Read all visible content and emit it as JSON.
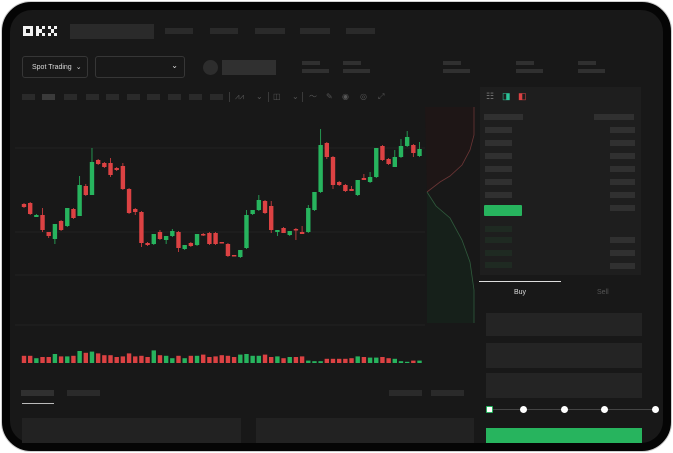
{
  "header": {
    "logo": "OKX"
  },
  "market": {
    "mode_label": "Spot Trading",
    "mode_icon": "chevron-down-icon",
    "pair_icon": "chevron-down-icon"
  },
  "toolbar": {
    "icons": [
      "indicator-icon",
      "chevron-down-icon",
      "candle-type-icon",
      "chevron-down-icon",
      "line-tool-icon",
      "pencil-icon",
      "camera-icon",
      "circle-icon",
      "expand-icon"
    ]
  },
  "orderbook": {
    "view_icons": [
      "book-both-icon",
      "book-bids-icon",
      "book-asks-icon"
    ]
  },
  "trade": {
    "tabs": [
      "Buy",
      "Sell"
    ],
    "active_tab": "Buy",
    "slider_percent": 0,
    "slider_stops": [
      0,
      25,
      50,
      75,
      100
    ]
  },
  "colors": {
    "up": "#27b45e",
    "down": "#dc4243",
    "background": "#181818",
    "panel": "#1e1e1e"
  },
  "chart_data": {
    "type": "candlestick",
    "ohlc": [
      [
        96,
        97,
        92,
        93
      ],
      [
        97,
        98,
        85,
        86
      ],
      [
        83,
        86,
        83,
        85
      ],
      [
        85,
        92,
        68,
        70
      ],
      [
        68,
        68,
        62,
        64
      ],
      [
        61,
        76,
        56,
        76
      ],
      [
        79,
        80,
        69,
        70
      ],
      [
        74,
        92,
        73,
        92
      ],
      [
        91,
        92,
        81,
        82
      ],
      [
        84,
        124,
        84,
        115
      ],
      [
        114,
        116,
        104,
        105
      ],
      [
        105,
        152,
        105,
        138
      ],
      [
        140,
        141,
        135,
        136
      ],
      [
        137,
        138,
        132,
        133
      ],
      [
        137,
        142,
        123,
        125
      ],
      [
        132,
        133,
        129,
        130
      ],
      [
        134,
        137,
        110,
        111
      ],
      [
        111,
        112,
        86,
        87
      ],
      [
        91,
        92,
        85,
        88
      ],
      [
        88,
        89,
        53,
        57
      ],
      [
        57,
        58,
        54,
        55
      ],
      [
        56,
        66,
        55,
        66
      ],
      [
        68,
        70,
        60,
        61
      ],
      [
        60,
        64,
        56,
        64
      ],
      [
        64,
        71,
        63,
        69
      ],
      [
        68,
        69,
        48,
        52
      ],
      [
        51,
        55,
        50,
        55
      ],
      [
        57,
        58,
        53,
        54
      ],
      [
        55,
        66,
        54,
        66
      ],
      [
        66,
        67,
        64,
        65
      ],
      [
        67,
        68,
        55,
        56
      ],
      [
        67,
        68,
        55,
        56
      ],
      [
        58,
        58,
        57,
        57
      ],
      [
        56,
        57,
        43,
        44
      ],
      [
        45,
        45,
        44,
        44
      ],
      [
        43,
        50,
        42,
        50
      ],
      [
        52,
        90,
        51,
        85
      ],
      [
        86,
        90,
        85,
        90
      ],
      [
        90,
        105,
        89,
        100
      ],
      [
        99,
        100,
        86,
        87
      ],
      [
        94,
        99,
        67,
        70
      ],
      [
        68,
        70,
        64,
        70
      ],
      [
        72,
        73,
        67,
        67
      ],
      [
        65,
        69,
        64,
        69
      ],
      [
        71,
        72,
        60,
        70
      ],
      [
        68,
        74,
        66,
        66
      ],
      [
        68,
        95,
        67,
        92
      ],
      [
        90,
        108,
        89,
        108
      ],
      [
        108,
        171,
        107,
        155
      ],
      [
        157,
        158,
        141,
        143
      ],
      [
        143,
        144,
        111,
        115
      ],
      [
        118,
        119,
        114,
        115
      ],
      [
        115,
        116,
        108,
        109
      ],
      [
        111,
        114,
        109,
        109
      ],
      [
        105,
        120,
        104,
        120
      ],
      [
        122,
        126,
        120,
        120
      ],
      [
        118,
        128,
        117,
        123
      ],
      [
        123,
        152,
        122,
        152
      ],
      [
        154,
        155,
        139,
        140
      ],
      [
        141,
        142,
        135,
        136
      ],
      [
        133,
        150,
        133,
        143
      ],
      [
        143,
        161,
        142,
        154
      ],
      [
        154,
        169,
        153,
        163
      ],
      [
        155,
        156,
        143,
        147
      ],
      [
        144,
        158,
        143,
        151
      ]
    ],
    "volume": [
      12,
      12,
      8,
      10,
      10,
      15,
      11,
      11,
      12,
      20,
      17,
      19,
      16,
      13,
      13,
      10,
      11,
      16,
      11,
      12,
      10,
      21,
      13,
      12,
      8,
      12,
      8,
      12,
      12,
      14,
      10,
      11,
      13,
      12,
      10,
      14,
      15,
      12,
      12,
      14,
      10,
      11,
      8,
      10,
      10,
      11,
      4,
      3,
      3,
      7,
      7,
      7,
      7,
      8,
      11,
      10,
      9,
      9,
      10,
      8,
      7,
      3,
      2,
      4,
      4
    ]
  }
}
